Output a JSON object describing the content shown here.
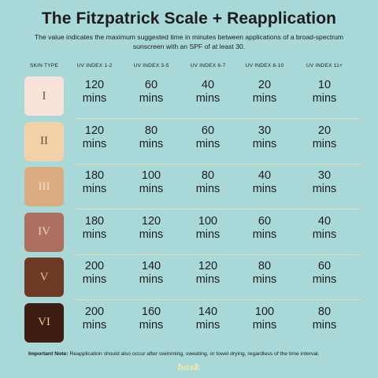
{
  "title": "The Fitzpatrick Scale + Reapplication",
  "subtitle": "The value indicates the maximum suggested time in minutes between applications of a broad-spectrum sunscreen with an SPF of at least 30.",
  "headers": [
    "SKIN TYPE",
    "UV INDEX 1-2",
    "UV INDEX 3-5",
    "UV INDEX 6-7",
    "UV INDEX 8-10",
    "UV INDEX 11+"
  ],
  "unit": "mins",
  "rows": [
    {
      "type": "I",
      "swatch_color": "#f8e3da",
      "text_color": "#6b4b3c",
      "values": [
        "120",
        "60",
        "40",
        "20",
        "10"
      ]
    },
    {
      "type": "II",
      "swatch_color": "#f3d2aa",
      "text_color": "#6b4b3c",
      "values": [
        "120",
        "80",
        "60",
        "30",
        "20"
      ]
    },
    {
      "type": "III",
      "swatch_color": "#ddab80",
      "text_color": "#f1dcc2",
      "values": [
        "180",
        "100",
        "80",
        "40",
        "30"
      ]
    },
    {
      "type": "IV",
      "swatch_color": "#ad705e",
      "text_color": "#efd1bd",
      "values": [
        "180",
        "120",
        "100",
        "60",
        "40"
      ]
    },
    {
      "type": "V",
      "swatch_color": "#6e3a24",
      "text_color": "#e7c58c",
      "values": [
        "200",
        "140",
        "120",
        "80",
        "60"
      ]
    },
    {
      "type": "VI",
      "swatch_color": "#3d1d12",
      "text_color": "#e7c58c",
      "values": [
        "200",
        "160",
        "140",
        "100",
        "80"
      ]
    }
  ],
  "note": {
    "label": "Important Note:",
    "text": " Reapplication should also occur after swimming, sweating, or towel drying, regardless of the time interval."
  },
  "logo_text": "bask",
  "colors": {
    "background": "#a9d8d8",
    "divider": "#e8ddb2",
    "logo": "#f3e9a6"
  }
}
